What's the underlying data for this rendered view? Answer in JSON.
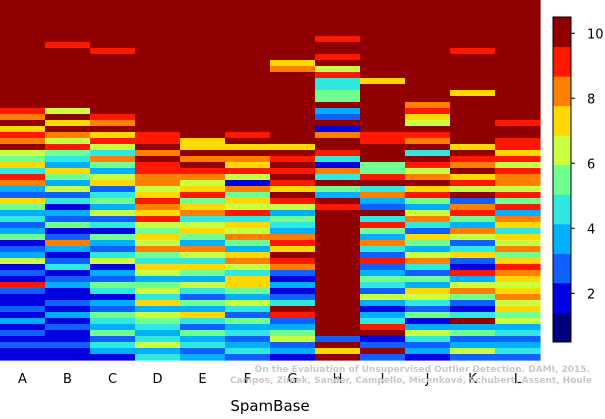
{
  "chart_data": {
    "type": "heatmap",
    "xlabel": "SpamBase",
    "categories": [
      "A",
      "B",
      "C",
      "D",
      "E",
      "F",
      "G",
      "H",
      "I",
      "J",
      "K",
      "L"
    ],
    "colorbar": {
      "ticks": [
        2,
        4,
        6,
        8,
        10
      ],
      "range": [
        0.5,
        10.5
      ],
      "palette": [
        "#00007f",
        "#0000e0",
        "#1060ff",
        "#00b0ff",
        "#30e8e0",
        "#70ff90",
        "#c8ff40",
        "#ffd800",
        "#ff8000",
        "#ff1800",
        "#900000"
      ]
    },
    "rows_per_column": 60,
    "watermark": {
      "line1": "On the Evaluation of Unsupervised Outlier Detection. DAMI, 2015.",
      "line2": "Campos, Zimek, Sander, Campello, Micenková, Schubert, Assent, Houle"
    },
    "columns": [
      {
        "name": "A",
        "values": [
          10,
          10,
          10,
          10,
          10,
          10,
          10,
          10,
          10,
          10,
          10,
          10,
          10,
          10,
          10,
          10,
          10,
          10,
          9,
          8,
          10,
          7,
          9,
          8,
          10,
          6,
          5,
          7,
          4,
          9,
          8,
          3,
          2,
          7,
          5,
          3,
          4,
          2,
          3,
          5,
          1,
          2,
          3,
          6,
          1,
          2,
          1,
          9,
          2,
          1,
          1,
          2,
          1,
          3,
          1,
          2,
          1,
          2,
          1,
          1
        ]
      },
      {
        "name": "B",
        "values": [
          10,
          10,
          10,
          10,
          10,
          10,
          10,
          9,
          10,
          10,
          10,
          10,
          10,
          10,
          10,
          10,
          10,
          10,
          6,
          10,
          7,
          10,
          8,
          6,
          9,
          5,
          4,
          3,
          7,
          5,
          3,
          6,
          2,
          4,
          1,
          3,
          2,
          5,
          1,
          2,
          8,
          3,
          1,
          2,
          4,
          1,
          2,
          3,
          1,
          1,
          2,
          1,
          3,
          1,
          2,
          1,
          1,
          2,
          1,
          1
        ]
      },
      {
        "name": "C",
        "values": [
          10,
          10,
          10,
          10,
          10,
          10,
          10,
          10,
          9,
          10,
          10,
          10,
          10,
          10,
          10,
          10,
          10,
          10,
          10,
          9,
          8,
          10,
          7,
          9,
          6,
          4,
          8,
          5,
          3,
          6,
          7,
          2,
          4,
          5,
          3,
          6,
          2,
          4,
          1,
          5,
          3,
          2,
          4,
          6,
          1,
          3,
          2,
          5,
          4,
          1,
          3,
          2,
          5,
          4,
          3,
          5,
          2,
          4,
          3,
          1
        ]
      },
      {
        "name": "D",
        "values": [
          10,
          10,
          10,
          10,
          10,
          10,
          10,
          10,
          10,
          10,
          10,
          10,
          10,
          10,
          10,
          10,
          10,
          10,
          10,
          10,
          10,
          10,
          9,
          9,
          10,
          8,
          10,
          9,
          9,
          8,
          8,
          6,
          7,
          9,
          8,
          7,
          9,
          6,
          5,
          7,
          6,
          8,
          5,
          4,
          7,
          6,
          3,
          5,
          6,
          4,
          7,
          3,
          6,
          5,
          4,
          3,
          4,
          6,
          3,
          4
        ]
      },
      {
        "name": "E",
        "values": [
          10,
          10,
          10,
          10,
          10,
          10,
          10,
          10,
          10,
          10,
          10,
          10,
          10,
          10,
          10,
          10,
          10,
          10,
          10,
          10,
          10,
          10,
          10,
          7,
          7,
          10,
          8,
          10,
          9,
          8,
          6,
          7,
          9,
          5,
          7,
          8,
          4,
          6,
          7,
          5,
          3,
          8,
          6,
          4,
          7,
          5,
          3,
          6,
          4,
          2,
          5,
          3,
          7,
          4,
          2,
          5,
          3,
          4,
          2,
          3
        ]
      },
      {
        "name": "F",
        "values": [
          10,
          10,
          10,
          10,
          10,
          10,
          10,
          10,
          10,
          10,
          10,
          10,
          10,
          10,
          10,
          10,
          10,
          10,
          10,
          10,
          10,
          10,
          9,
          10,
          7,
          10,
          8,
          7,
          9,
          6,
          1,
          8,
          5,
          7,
          6,
          9,
          4,
          7,
          6,
          8,
          5,
          3,
          7,
          8,
          6,
          4,
          7,
          7,
          5,
          3,
          6,
          4,
          2,
          5,
          3,
          4,
          2,
          3,
          4,
          2
        ]
      },
      {
        "name": "G",
        "values": [
          10,
          10,
          10,
          10,
          10,
          10,
          10,
          10,
          10,
          10,
          7,
          8,
          10,
          10,
          10,
          10,
          10,
          10,
          10,
          10,
          10,
          10,
          10,
          10,
          7,
          10,
          9,
          10,
          9,
          10,
          9,
          7,
          10,
          9,
          6,
          3,
          5,
          4,
          3,
          8,
          9,
          7,
          10,
          9,
          8,
          2,
          1,
          3,
          1,
          2,
          4,
          10,
          9,
          2,
          3,
          5,
          6,
          2,
          3,
          1
        ]
      },
      {
        "name": "H",
        "values": [
          10,
          10,
          10,
          10,
          10,
          10,
          9,
          10,
          10,
          9,
          10,
          6,
          9,
          4,
          4,
          5,
          5,
          10,
          3,
          2,
          10,
          1,
          8,
          10,
          10,
          9,
          4,
          1,
          8,
          4,
          10,
          5,
          3,
          10,
          9,
          10,
          10,
          10,
          10,
          10,
          10,
          10,
          10,
          10,
          10,
          10,
          10,
          10,
          10,
          10,
          10,
          10,
          10,
          10,
          10,
          10,
          2,
          10,
          7,
          10
        ]
      },
      {
        "name": "I",
        "values": [
          10,
          10,
          10,
          10,
          10,
          10,
          10,
          10,
          10,
          10,
          10,
          10,
          10,
          7,
          10,
          10,
          10,
          10,
          10,
          10,
          10,
          10,
          9,
          9,
          10,
          10,
          10,
          5,
          5,
          9,
          10,
          4,
          8,
          3,
          2,
          10,
          4,
          9,
          5,
          3,
          8,
          4,
          2,
          9,
          2,
          3,
          5,
          4,
          2,
          6,
          3,
          1,
          3,
          4,
          9,
          10,
          1,
          2,
          10,
          2
        ]
      },
      {
        "name": "J",
        "values": [
          10,
          10,
          10,
          10,
          10,
          10,
          10,
          10,
          10,
          10,
          10,
          10,
          10,
          10,
          10,
          10,
          10,
          8,
          9,
          7,
          6,
          10,
          9,
          8,
          10,
          4,
          10,
          9,
          6,
          8,
          10,
          7,
          9,
          5,
          3,
          6,
          8,
          4,
          2,
          7,
          5,
          3,
          6,
          8,
          4,
          2,
          5,
          3,
          7,
          6,
          4,
          2,
          5,
          1,
          3,
          6,
          4,
          2,
          3,
          1
        ]
      },
      {
        "name": "K",
        "values": [
          10,
          10,
          10,
          10,
          10,
          10,
          10,
          10,
          9,
          10,
          10,
          10,
          10,
          10,
          10,
          7,
          10,
          10,
          10,
          10,
          10,
          10,
          10,
          10,
          7,
          10,
          9,
          8,
          10,
          7,
          9,
          6,
          10,
          2,
          8,
          9,
          5,
          3,
          8,
          6,
          2,
          4,
          7,
          2,
          1,
          9,
          3,
          6,
          8,
          5,
          2,
          1,
          4,
          10,
          3,
          5,
          2,
          3,
          6,
          2
        ]
      },
      {
        "name": "L",
        "values": [
          10,
          10,
          10,
          10,
          10,
          10,
          10,
          10,
          10,
          10,
          10,
          10,
          10,
          10,
          10,
          10,
          10,
          10,
          10,
          10,
          9,
          10,
          10,
          9,
          9,
          7,
          9,
          6,
          9,
          8,
          8,
          6,
          9,
          5,
          9,
          3,
          8,
          7,
          4,
          7,
          6,
          8,
          5,
          7,
          9,
          8,
          7,
          6,
          7,
          8,
          6,
          7,
          5,
          6,
          3,
          4,
          2,
          3,
          4,
          2
        ]
      }
    ]
  }
}
